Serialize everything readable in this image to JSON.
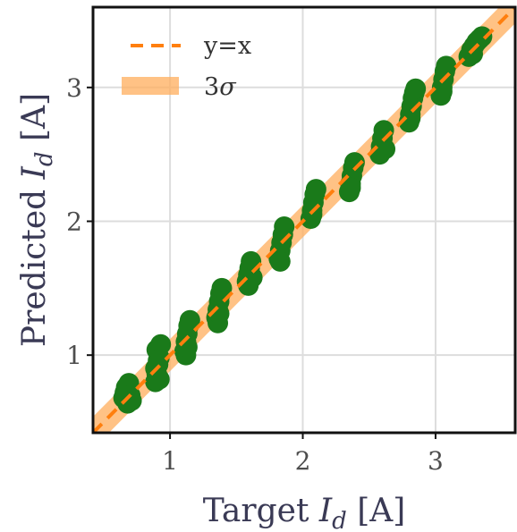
{
  "chart_data": {
    "type": "scatter",
    "xlabel": "Target I_d [A]",
    "ylabel": "Predicted I_d [A]",
    "xlabel_parts": {
      "pre": "Target ",
      "var": "I",
      "sub": "d",
      "post": " [A]"
    },
    "ylabel_parts": {
      "pre": "Predicted ",
      "var": "I",
      "sub": "d",
      "post": " [A]"
    },
    "xlim": [
      0.42,
      3.6
    ],
    "ylim": [
      0.42,
      3.6
    ],
    "xticks": [
      1,
      2,
      3
    ],
    "yticks": [
      1,
      2,
      3
    ],
    "xtick_labels": [
      "1",
      "2",
      "3"
    ],
    "ytick_labels": [
      "1",
      "2",
      "3"
    ],
    "grid": true,
    "legend_position": "top-left",
    "colors": {
      "points": "#1a7a1a",
      "line": "#ff7f0e",
      "band": "#ffad5c"
    },
    "series": [
      {
        "name": "y=x",
        "kind": "line",
        "style": "dashed",
        "x": [
          0.42,
          3.6
        ],
        "y": [
          0.42,
          3.6
        ]
      },
      {
        "name": "3σ",
        "kind": "band",
        "half_width": 0.12,
        "legend_label": {
          "pre": "3",
          "var": "σ"
        }
      },
      {
        "name": "",
        "kind": "scatter",
        "points": [
          [
            0.65,
            0.68
          ],
          [
            0.66,
            0.72
          ],
          [
            0.67,
            0.76
          ],
          [
            0.68,
            0.64
          ],
          [
            0.69,
            0.79
          ],
          [
            0.7,
            0.7
          ],
          [
            0.71,
            0.66
          ],
          [
            0.89,
            0.8
          ],
          [
            0.9,
            0.86
          ],
          [
            0.91,
            0.93
          ],
          [
            0.92,
            0.98
          ],
          [
            0.9,
            1.04
          ],
          [
            0.93,
            1.08
          ],
          [
            0.89,
            0.9
          ],
          [
            0.92,
            0.82
          ],
          [
            0.91,
            0.96
          ],
          [
            1.11,
            1.03
          ],
          [
            1.12,
            1.1
          ],
          [
            1.13,
            1.16
          ],
          [
            1.14,
            1.22
          ],
          [
            1.12,
            1.0
          ],
          [
            1.15,
            1.26
          ],
          [
            1.13,
            1.06
          ],
          [
            1.35,
            1.28
          ],
          [
            1.36,
            1.34
          ],
          [
            1.37,
            1.4
          ],
          [
            1.38,
            1.46
          ],
          [
            1.36,
            1.24
          ],
          [
            1.39,
            1.5
          ],
          [
            1.37,
            1.31
          ],
          [
            1.58,
            1.55
          ],
          [
            1.59,
            1.6
          ],
          [
            1.6,
            1.65
          ],
          [
            1.61,
            1.7
          ],
          [
            1.62,
            1.58
          ],
          [
            1.59,
            1.52
          ],
          [
            1.82,
            1.72
          ],
          [
            1.83,
            1.78
          ],
          [
            1.84,
            1.84
          ],
          [
            1.85,
            1.9
          ],
          [
            1.86,
            1.96
          ],
          [
            1.83,
            1.7
          ],
          [
            2.06,
            2.02
          ],
          [
            2.07,
            2.08
          ],
          [
            2.08,
            2.14
          ],
          [
            2.09,
            2.2
          ],
          [
            2.1,
            2.24
          ],
          [
            2.07,
            2.05
          ],
          [
            2.35,
            2.22
          ],
          [
            2.36,
            2.28
          ],
          [
            2.37,
            2.34
          ],
          [
            2.38,
            2.4
          ],
          [
            2.39,
            2.44
          ],
          [
            2.36,
            2.25
          ],
          [
            2.58,
            2.5
          ],
          [
            2.59,
            2.56
          ],
          [
            2.6,
            2.62
          ],
          [
            2.61,
            2.68
          ],
          [
            2.62,
            2.54
          ],
          [
            2.8,
            2.74
          ],
          [
            2.81,
            2.8
          ],
          [
            2.82,
            2.86
          ],
          [
            2.83,
            2.92
          ],
          [
            2.84,
            2.96
          ],
          [
            2.85,
            2.99
          ],
          [
            2.81,
            2.77
          ],
          [
            3.04,
            2.94
          ],
          [
            3.05,
            3.0
          ],
          [
            3.06,
            3.06
          ],
          [
            3.07,
            3.12
          ],
          [
            3.08,
            3.16
          ],
          [
            3.05,
            2.97
          ],
          [
            3.25,
            3.23
          ],
          [
            3.27,
            3.28
          ],
          [
            3.29,
            3.31
          ],
          [
            3.31,
            3.34
          ],
          [
            3.33,
            3.36
          ],
          [
            3.35,
            3.38
          ],
          [
            3.28,
            3.25
          ]
        ]
      }
    ]
  }
}
